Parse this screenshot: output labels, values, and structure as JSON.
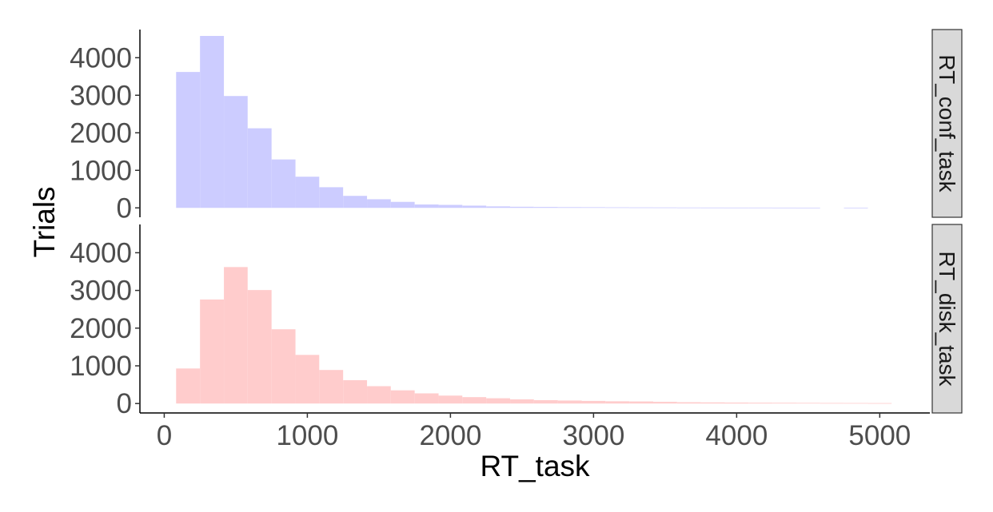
{
  "chart_data": {
    "type": "bar",
    "subtype": "histogram-faceted",
    "xlabel": "RT_task",
    "ylabel": "Trials",
    "xlim": [
      -170,
      5350
    ],
    "ylim": [
      -250,
      4750
    ],
    "x_ticks": [
      0,
      1000,
      2000,
      3000,
      4000,
      5000
    ],
    "y_ticks": [
      0,
      1000,
      2000,
      3000,
      4000
    ],
    "bin_width": 167,
    "grid": false,
    "legend": "none",
    "panels": [
      {
        "name": "RT_conf_task",
        "color": "#ccccff",
        "bins": [
          {
            "x0": 83,
            "x1": 250,
            "count": 3620
          },
          {
            "x0": 250,
            "x1": 417,
            "count": 4580
          },
          {
            "x0": 417,
            "x1": 583,
            "count": 2980
          },
          {
            "x0": 583,
            "x1": 750,
            "count": 2120
          },
          {
            "x0": 750,
            "x1": 917,
            "count": 1290
          },
          {
            "x0": 917,
            "x1": 1083,
            "count": 830
          },
          {
            "x0": 1083,
            "x1": 1250,
            "count": 550
          },
          {
            "x0": 1250,
            "x1": 1417,
            "count": 320
          },
          {
            "x0": 1417,
            "x1": 1583,
            "count": 230
          },
          {
            "x0": 1583,
            "x1": 1750,
            "count": 160
          },
          {
            "x0": 1750,
            "x1": 1917,
            "count": 90
          },
          {
            "x0": 1917,
            "x1": 2083,
            "count": 80
          },
          {
            "x0": 2083,
            "x1": 2250,
            "count": 60
          },
          {
            "x0": 2250,
            "x1": 2417,
            "count": 40
          },
          {
            "x0": 2417,
            "x1": 2583,
            "count": 30
          },
          {
            "x0": 2583,
            "x1": 2750,
            "count": 25
          },
          {
            "x0": 2750,
            "x1": 2917,
            "count": 20
          },
          {
            "x0": 2917,
            "x1": 3083,
            "count": 18
          },
          {
            "x0": 3083,
            "x1": 3250,
            "count": 15
          },
          {
            "x0": 3250,
            "x1": 3417,
            "count": 13
          },
          {
            "x0": 3417,
            "x1": 3583,
            "count": 12
          },
          {
            "x0": 3583,
            "x1": 3750,
            "count": 10
          },
          {
            "x0": 3750,
            "x1": 3917,
            "count": 9
          },
          {
            "x0": 3917,
            "x1": 4083,
            "count": 8
          },
          {
            "x0": 4083,
            "x1": 4250,
            "count": 8
          },
          {
            "x0": 4250,
            "x1": 4417,
            "count": 7
          },
          {
            "x0": 4417,
            "x1": 4583,
            "count": 6
          },
          {
            "x0": 4583,
            "x1": 4750,
            "count": 0
          },
          {
            "x0": 4750,
            "x1": 4917,
            "count": 6
          }
        ]
      },
      {
        "name": "RT_disk_task",
        "color": "#ffcccc",
        "bins": [
          {
            "x0": 83,
            "x1": 250,
            "count": 930
          },
          {
            "x0": 250,
            "x1": 417,
            "count": 2760
          },
          {
            "x0": 417,
            "x1": 583,
            "count": 3620
          },
          {
            "x0": 583,
            "x1": 750,
            "count": 3010
          },
          {
            "x0": 750,
            "x1": 917,
            "count": 1970
          },
          {
            "x0": 917,
            "x1": 1083,
            "count": 1290
          },
          {
            "x0": 1083,
            "x1": 1250,
            "count": 890
          },
          {
            "x0": 1250,
            "x1": 1417,
            "count": 620
          },
          {
            "x0": 1417,
            "x1": 1583,
            "count": 460
          },
          {
            "x0": 1583,
            "x1": 1750,
            "count": 350
          },
          {
            "x0": 1750,
            "x1": 1917,
            "count": 270
          },
          {
            "x0": 1917,
            "x1": 2083,
            "count": 210
          },
          {
            "x0": 2083,
            "x1": 2250,
            "count": 170
          },
          {
            "x0": 2250,
            "x1": 2417,
            "count": 140
          },
          {
            "x0": 2417,
            "x1": 2583,
            "count": 110
          },
          {
            "x0": 2583,
            "x1": 2750,
            "count": 90
          },
          {
            "x0": 2750,
            "x1": 2917,
            "count": 80
          },
          {
            "x0": 2917,
            "x1": 3083,
            "count": 70
          },
          {
            "x0": 3083,
            "x1": 3250,
            "count": 60
          },
          {
            "x0": 3250,
            "x1": 3417,
            "count": 55
          },
          {
            "x0": 3417,
            "x1": 3583,
            "count": 45
          },
          {
            "x0": 3583,
            "x1": 3750,
            "count": 35
          },
          {
            "x0": 3750,
            "x1": 3917,
            "count": 30
          },
          {
            "x0": 3917,
            "x1": 4083,
            "count": 25
          },
          {
            "x0": 4083,
            "x1": 4250,
            "count": 22
          },
          {
            "x0": 4250,
            "x1": 4417,
            "count": 20
          },
          {
            "x0": 4417,
            "x1": 4583,
            "count": 18
          },
          {
            "x0": 4583,
            "x1": 4750,
            "count": 15
          },
          {
            "x0": 4750,
            "x1": 4917,
            "count": 14
          },
          {
            "x0": 4917,
            "x1": 5083,
            "count": 12
          }
        ]
      }
    ]
  }
}
